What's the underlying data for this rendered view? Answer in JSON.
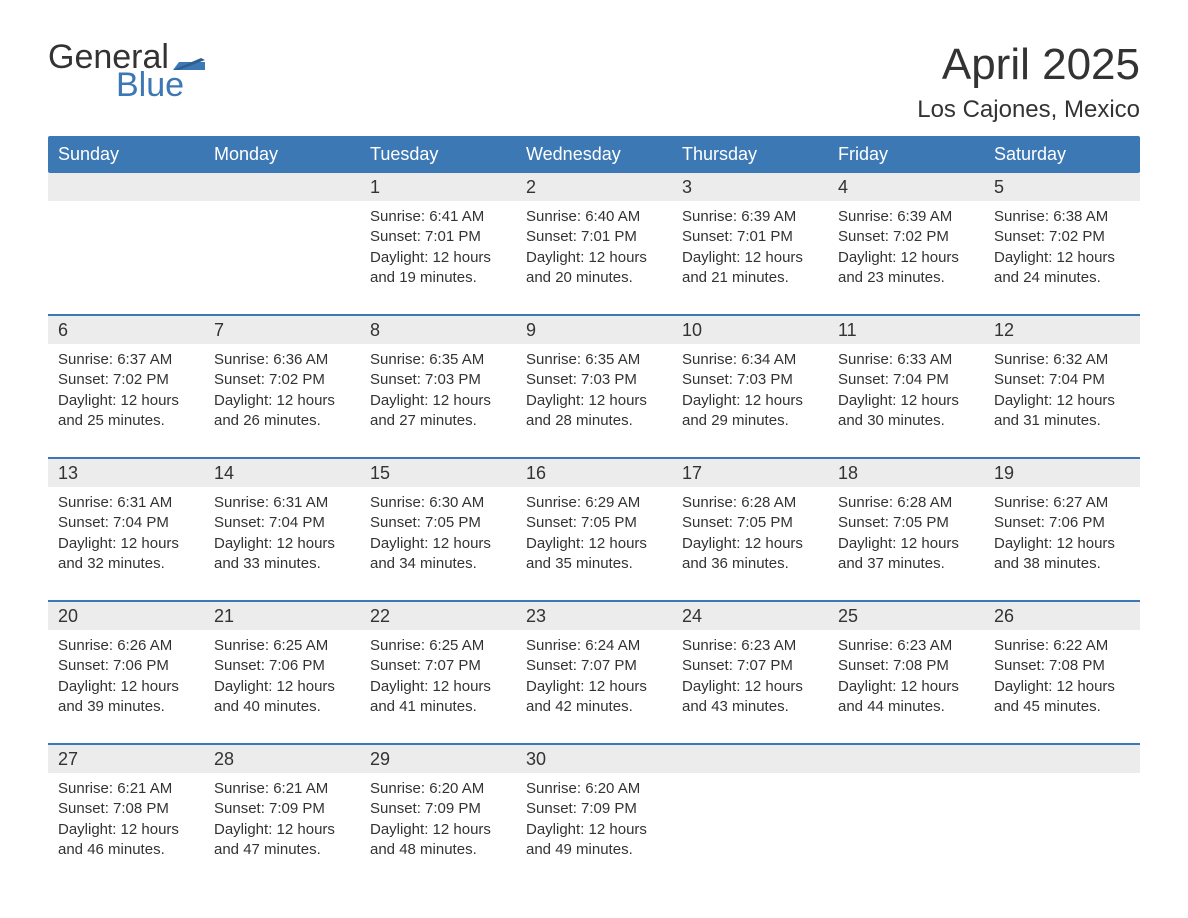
{
  "logo": {
    "word1": "General",
    "word2": "Blue",
    "text_color": "#333333",
    "accent_color": "#3c78b4"
  },
  "title": {
    "month_year": "April 2025",
    "location": "Los Cajones, Mexico",
    "month_fontsize": 44,
    "location_fontsize": 24
  },
  "styling": {
    "header_bg": "#3c78b4",
    "header_text": "#ffffff",
    "daynum_bg": "#ececec",
    "week_border_color": "#3c78b4",
    "body_text_color": "#333333",
    "background_color": "#ffffff",
    "weekday_fontsize": 18,
    "daynum_fontsize": 18,
    "body_fontsize": 15
  },
  "weekdays": [
    "Sunday",
    "Monday",
    "Tuesday",
    "Wednesday",
    "Thursday",
    "Friday",
    "Saturday"
  ],
  "labels": {
    "sunrise": "Sunrise:",
    "sunset": "Sunset:",
    "daylight": "Daylight:"
  },
  "weeks": [
    [
      {
        "blank": true
      },
      {
        "blank": true
      },
      {
        "day": "1",
        "sunrise": "6:41 AM",
        "sunset": "7:01 PM",
        "daylight": "12 hours and 19 minutes."
      },
      {
        "day": "2",
        "sunrise": "6:40 AM",
        "sunset": "7:01 PM",
        "daylight": "12 hours and 20 minutes."
      },
      {
        "day": "3",
        "sunrise": "6:39 AM",
        "sunset": "7:01 PM",
        "daylight": "12 hours and 21 minutes."
      },
      {
        "day": "4",
        "sunrise": "6:39 AM",
        "sunset": "7:02 PM",
        "daylight": "12 hours and 23 minutes."
      },
      {
        "day": "5",
        "sunrise": "6:38 AM",
        "sunset": "7:02 PM",
        "daylight": "12 hours and 24 minutes."
      }
    ],
    [
      {
        "day": "6",
        "sunrise": "6:37 AM",
        "sunset": "7:02 PM",
        "daylight": "12 hours and 25 minutes."
      },
      {
        "day": "7",
        "sunrise": "6:36 AM",
        "sunset": "7:02 PM",
        "daylight": "12 hours and 26 minutes."
      },
      {
        "day": "8",
        "sunrise": "6:35 AM",
        "sunset": "7:03 PM",
        "daylight": "12 hours and 27 minutes."
      },
      {
        "day": "9",
        "sunrise": "6:35 AM",
        "sunset": "7:03 PM",
        "daylight": "12 hours and 28 minutes."
      },
      {
        "day": "10",
        "sunrise": "6:34 AM",
        "sunset": "7:03 PM",
        "daylight": "12 hours and 29 minutes."
      },
      {
        "day": "11",
        "sunrise": "6:33 AM",
        "sunset": "7:04 PM",
        "daylight": "12 hours and 30 minutes."
      },
      {
        "day": "12",
        "sunrise": "6:32 AM",
        "sunset": "7:04 PM",
        "daylight": "12 hours and 31 minutes."
      }
    ],
    [
      {
        "day": "13",
        "sunrise": "6:31 AM",
        "sunset": "7:04 PM",
        "daylight": "12 hours and 32 minutes."
      },
      {
        "day": "14",
        "sunrise": "6:31 AM",
        "sunset": "7:04 PM",
        "daylight": "12 hours and 33 minutes."
      },
      {
        "day": "15",
        "sunrise": "6:30 AM",
        "sunset": "7:05 PM",
        "daylight": "12 hours and 34 minutes."
      },
      {
        "day": "16",
        "sunrise": "6:29 AM",
        "sunset": "7:05 PM",
        "daylight": "12 hours and 35 minutes."
      },
      {
        "day": "17",
        "sunrise": "6:28 AM",
        "sunset": "7:05 PM",
        "daylight": "12 hours and 36 minutes."
      },
      {
        "day": "18",
        "sunrise": "6:28 AM",
        "sunset": "7:05 PM",
        "daylight": "12 hours and 37 minutes."
      },
      {
        "day": "19",
        "sunrise": "6:27 AM",
        "sunset": "7:06 PM",
        "daylight": "12 hours and 38 minutes."
      }
    ],
    [
      {
        "day": "20",
        "sunrise": "6:26 AM",
        "sunset": "7:06 PM",
        "daylight": "12 hours and 39 minutes."
      },
      {
        "day": "21",
        "sunrise": "6:25 AM",
        "sunset": "7:06 PM",
        "daylight": "12 hours and 40 minutes."
      },
      {
        "day": "22",
        "sunrise": "6:25 AM",
        "sunset": "7:07 PM",
        "daylight": "12 hours and 41 minutes."
      },
      {
        "day": "23",
        "sunrise": "6:24 AM",
        "sunset": "7:07 PM",
        "daylight": "12 hours and 42 minutes."
      },
      {
        "day": "24",
        "sunrise": "6:23 AM",
        "sunset": "7:07 PM",
        "daylight": "12 hours and 43 minutes."
      },
      {
        "day": "25",
        "sunrise": "6:23 AM",
        "sunset": "7:08 PM",
        "daylight": "12 hours and 44 minutes."
      },
      {
        "day": "26",
        "sunrise": "6:22 AM",
        "sunset": "7:08 PM",
        "daylight": "12 hours and 45 minutes."
      }
    ],
    [
      {
        "day": "27",
        "sunrise": "6:21 AM",
        "sunset": "7:08 PM",
        "daylight": "12 hours and 46 minutes."
      },
      {
        "day": "28",
        "sunrise": "6:21 AM",
        "sunset": "7:09 PM",
        "daylight": "12 hours and 47 minutes."
      },
      {
        "day": "29",
        "sunrise": "6:20 AM",
        "sunset": "7:09 PM",
        "daylight": "12 hours and 48 minutes."
      },
      {
        "day": "30",
        "sunrise": "6:20 AM",
        "sunset": "7:09 PM",
        "daylight": "12 hours and 49 minutes."
      },
      {
        "blank": true
      },
      {
        "blank": true
      },
      {
        "blank": true
      }
    ]
  ]
}
